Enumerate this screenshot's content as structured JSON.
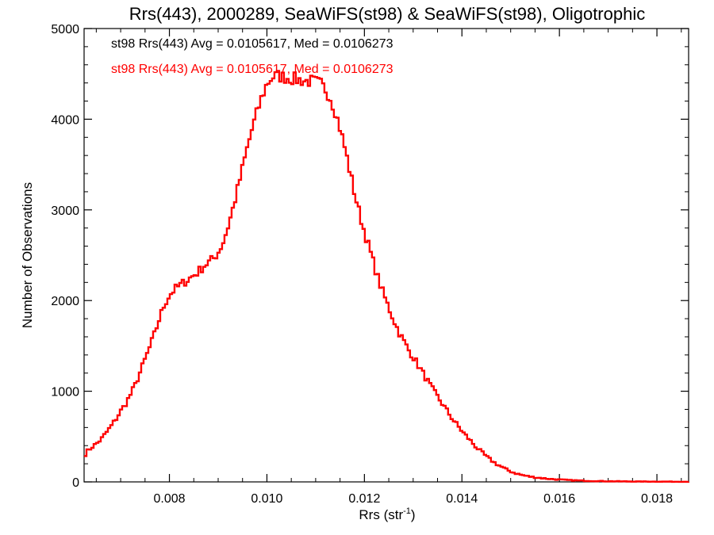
{
  "chart_data": {
    "type": "histogram-step",
    "title": "Rrs(443), 2000289, SeaWiFS(st98) & SeaWiFS(st98), Oligotrophic",
    "xlabel_main": "Rrs (str",
    "xlabel_sup": "-1",
    "xlabel_close": ")",
    "ylabel": "Number of Observations",
    "xlim": [
      0.00625,
      0.01865
    ],
    "ylim": [
      0,
      5000
    ],
    "xticks": [
      0.008,
      0.01,
      0.012,
      0.014,
      0.016,
      0.018
    ],
    "xtick_labels": [
      "0.008",
      "0.010",
      "0.012",
      "0.014",
      "0.016",
      "0.018"
    ],
    "yticks": [
      0,
      1000,
      2000,
      3000,
      4000,
      5000
    ],
    "ytick_labels": [
      "0",
      "1000",
      "2000",
      "3000",
      "4000",
      "5000"
    ],
    "annotations": [
      {
        "text": "st98 Rrs(443) Avg = 0.0105617, Med = 0.0106273",
        "color": "#000000"
      },
      {
        "text": "st98 Rrs(443) Avg = 0.0105617, Med = 0.0106273",
        "color": "#ff0000"
      }
    ],
    "series": [
      {
        "color": "#ff0000",
        "bin_width": 4.88e-05,
        "x": [
          0.00625,
          0.0063,
          0.0064,
          0.0065,
          0.0066,
          0.0067,
          0.0068,
          0.0069,
          0.007,
          0.0071,
          0.0072,
          0.0073,
          0.0074,
          0.0075,
          0.0076,
          0.0077,
          0.0078,
          0.0079,
          0.008,
          0.0081,
          0.0082,
          0.0083,
          0.0084,
          0.0085,
          0.0086,
          0.0087,
          0.0088,
          0.0089,
          0.009,
          0.0091,
          0.0092,
          0.0093,
          0.0094,
          0.0095,
          0.0096,
          0.0097,
          0.0098,
          0.0099,
          0.01,
          0.0101,
          0.0102,
          0.0103,
          0.0104,
          0.0105,
          0.0106,
          0.0107,
          0.0108,
          0.0109,
          0.011,
          0.0111,
          0.0112,
          0.0113,
          0.0114,
          0.0115,
          0.0116,
          0.0117,
          0.0118,
          0.0119,
          0.012,
          0.0121,
          0.0122,
          0.0123,
          0.0124,
          0.0125,
          0.0126,
          0.0127,
          0.0128,
          0.0129,
          0.013,
          0.0131,
          0.0132,
          0.0133,
          0.0134,
          0.0135,
          0.0136,
          0.0137,
          0.0138,
          0.0139,
          0.014,
          0.0141,
          0.0142,
          0.0143,
          0.0144,
          0.0145,
          0.0146,
          0.0147,
          0.0148,
          0.0149,
          0.015,
          0.0151,
          0.0152,
          0.0153,
          0.0154,
          0.0155,
          0.0156,
          0.0157,
          0.0158,
          0.0159,
          0.016,
          0.0161,
          0.0162,
          0.0163,
          0.0164,
          0.0165,
          0.0166,
          0.0167,
          0.0168,
          0.0169,
          0.017,
          0.0172,
          0.0174,
          0.0176,
          0.0178,
          0.018,
          0.0182,
          0.0184,
          0.0186
        ],
        "y": [
          280,
          330,
          380,
          420,
          470,
          540,
          610,
          690,
          780,
          860,
          960,
          1070,
          1210,
          1350,
          1490,
          1640,
          1810,
          1960,
          2060,
          2120,
          2160,
          2200,
          2240,
          2280,
          2320,
          2380,
          2420,
          2460,
          2530,
          2640,
          2810,
          3010,
          3230,
          3460,
          3690,
          3900,
          4080,
          4250,
          4390,
          4460,
          4480,
          4470,
          4460,
          4450,
          4440,
          4430,
          4420,
          4420,
          4410,
          4390,
          4330,
          4240,
          4090,
          3900,
          3680,
          3430,
          3180,
          2960,
          2760,
          2580,
          2390,
          2210,
          2060,
          1920,
          1790,
          1660,
          1560,
          1460,
          1380,
          1290,
          1200,
          1110,
          1020,
          940,
          860,
          780,
          700,
          630,
          560,
          500,
          440,
          380,
          330,
          280,
          240,
          200,
          170,
          140,
          115,
          95,
          80,
          68,
          58,
          50,
          44,
          38,
          33,
          29,
          25,
          22,
          19,
          17,
          15,
          13,
          11,
          10,
          9,
          8,
          7,
          6,
          5,
          4,
          4,
          3,
          3,
          2,
          2
        ]
      }
    ]
  }
}
